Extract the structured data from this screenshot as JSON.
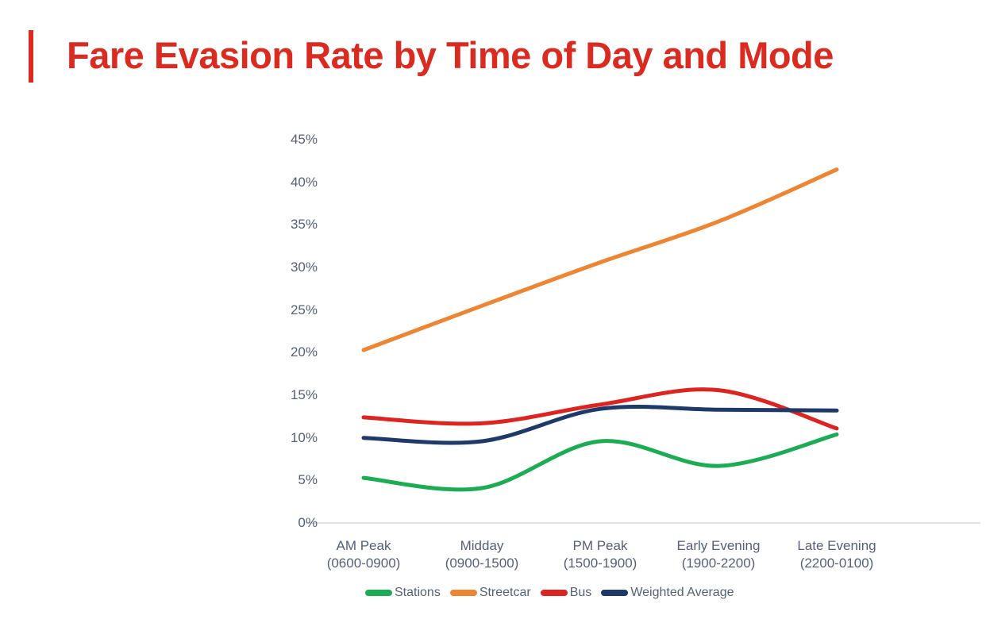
{
  "header": {
    "title": "Fare Evasion Rate by Time of Day and Mode",
    "accent_color": "#DB2B21"
  },
  "axis_text_color": "#53617A",
  "axis_line_color": "#D8D8D8",
  "chart_data": {
    "type": "line",
    "title": "Fare Evasion Rate by Time of Day and Mode",
    "categories": [
      {
        "label": "AM Peak",
        "sublabel": "(0600-0900)"
      },
      {
        "label": "Midday",
        "sublabel": "(0900-1500)"
      },
      {
        "label": "PM Peak",
        "sublabel": "(1500-1900)"
      },
      {
        "label": "Early Evening",
        "sublabel": "(1900-2200)"
      },
      {
        "label": "Late Evening",
        "sublabel": "(2200-0100)"
      }
    ],
    "series": [
      {
        "name": "Stations",
        "color": "#1CAD54",
        "values": [
          5.3,
          4.1,
          9.6,
          6.7,
          10.4
        ]
      },
      {
        "name": "Streetcar",
        "color": "#EE8533",
        "values": [
          20.3,
          25.5,
          30.6,
          35.4,
          41.5
        ]
      },
      {
        "name": "Bus",
        "color": "#DD2420",
        "values": [
          12.4,
          11.7,
          13.9,
          15.6,
          11.1
        ]
      },
      {
        "name": "Weighted Average",
        "color": "#1E3A6B",
        "values": [
          10.0,
          9.6,
          13.4,
          13.3,
          13.2
        ]
      }
    ],
    "xlabel": "",
    "ylabel": "",
    "y_axis": {
      "min": 0,
      "max": 45,
      "step": 5,
      "tick_suffix": "%"
    },
    "ylim": [
      0,
      45
    ],
    "grid": "x-axis baseline only, no gridlines",
    "legend_position": "bottom",
    "line_style": "smoothed spline, thick rounded strokes"
  }
}
